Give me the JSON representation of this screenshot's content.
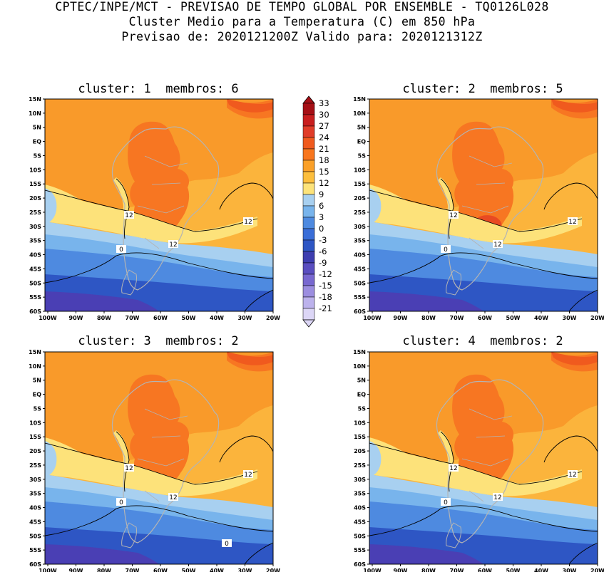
{
  "header": {
    "line1": "CPTEC/INPE/MCT - PREVISAO DE TEMPO GLOBAL POR ENSEMBLE - TQ0126L028",
    "line2": "Cluster Medio para a Temperatura (C) em 850 hPa",
    "line3": "Previsao de: 2020121200Z   Valido para: 2020121312Z"
  },
  "panels": [
    {
      "id": "cluster-1",
      "title": "cluster: 1  membros: 6",
      "contour_labels": [
        "12",
        "12",
        "12",
        "0"
      ]
    },
    {
      "id": "cluster-2",
      "title": "cluster: 2  membros: 5",
      "contour_labels": [
        "12",
        "12",
        "12",
        "0"
      ]
    },
    {
      "id": "cluster-3",
      "title": "cluster: 3  membros: 2",
      "contour_labels": [
        "12",
        "12",
        "12",
        "0",
        "0"
      ]
    },
    {
      "id": "cluster-4",
      "title": "cluster: 4  membros: 2",
      "contour_labels": [
        "12",
        "12",
        "12",
        "0"
      ]
    }
  ],
  "axes": {
    "lat_ticks": [
      "15N",
      "10N",
      "5N",
      "EQ",
      "5S",
      "10S",
      "15S",
      "20S",
      "25S",
      "30S",
      "35S",
      "40S",
      "45S",
      "50S",
      "55S",
      "60S"
    ],
    "lon_ticks": [
      "100W",
      "90W",
      "80W",
      "70W",
      "60W",
      "50W",
      "40W",
      "30W",
      "20W"
    ]
  },
  "colorbar": {
    "levels": [
      "33",
      "30",
      "27",
      "24",
      "21",
      "18",
      "15",
      "12",
      "9",
      "6",
      "3",
      "0",
      "-3",
      "-6",
      "-9",
      "-12",
      "-15",
      "-18",
      "-21"
    ],
    "colors": [
      "#a50f15",
      "#c81e1e",
      "#e03c28",
      "#f05a1e",
      "#f8761e",
      "#faa028",
      "#fcbe3c",
      "#fde37a",
      "#a8d0f0",
      "#78b4ec",
      "#4e8ae0",
      "#3a6ed8",
      "#2e56c4",
      "#3e3eb0",
      "#5a4ec0",
      "#7868d0",
      "#9c8ee0",
      "#bcb2ec",
      "#dcd6f6"
    ]
  },
  "palette": {
    "dark_orange": "#f77622",
    "orange": "#f99a2a",
    "light_orange": "#fbb43c",
    "yellow": "#fde27a",
    "light_blue": "#a8d0f0",
    "sky_blue": "#78b4ec",
    "blue": "#4e8ae0",
    "mid_blue": "#3a6ed8",
    "deep_blue": "#2e56c4",
    "violet": "#4a3fb4",
    "land_border": "#b4b4b4"
  }
}
